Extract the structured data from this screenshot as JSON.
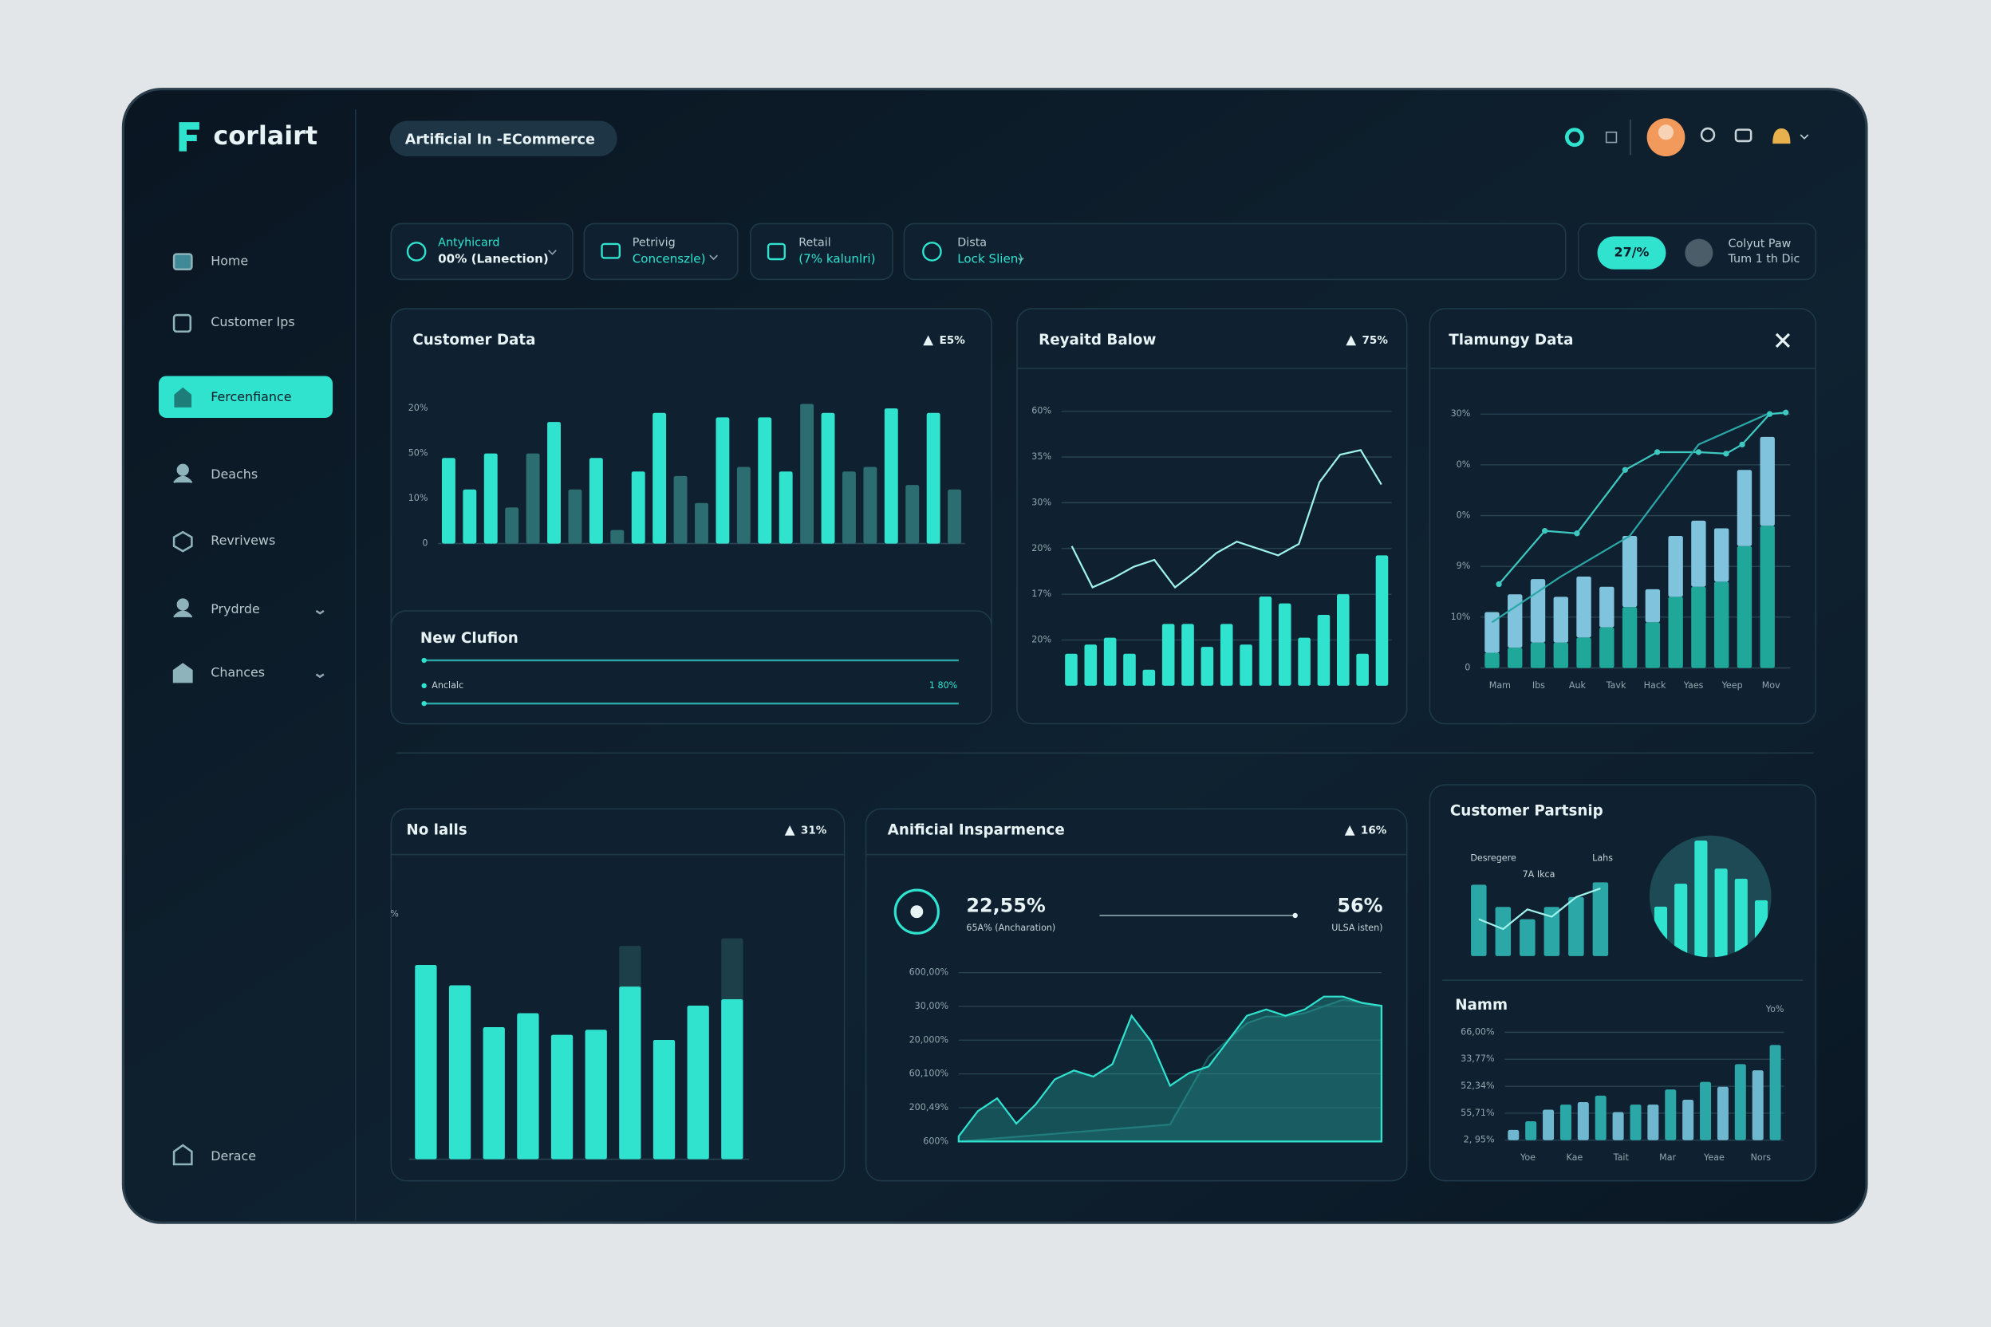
{
  "brand": "corlairt",
  "search": "Artificial In -ECommerce",
  "nav": [
    "Home",
    "Customer Ips",
    "Fercenfiance",
    "Deachs",
    "Revrivews",
    "Prydrde",
    "Chances"
  ],
  "nav_footer": "Derace",
  "filters": [
    {
      "label": "Antyhicard",
      "value": "00% (Lanection)"
    },
    {
      "label": "Petrivig",
      "value": "Concenszle)"
    },
    {
      "label": "Retail",
      "value": "(7% kalunlri)"
    },
    {
      "label": "Dista",
      "value": "Lock Slien)"
    }
  ],
  "status": {
    "badge": "27/%",
    "title": "Colyut Paw",
    "subtitle": "Tum 1 th Dic"
  },
  "progress": {
    "title": "New Clufion",
    "label": "Anclalc",
    "value_label": "1 80%"
  },
  "kpis": [
    {
      "value": "22,55%",
      "label": "65A% (Ancharation)"
    },
    {
      "value": "56%",
      "label": "ULSA isten)"
    }
  ],
  "partnership_title": "Customer Partsnip",
  "mini_labels": [
    "Desregere",
    "Lahs",
    "7A Ikca"
  ],
  "chart_data": [
    {
      "type": "bar",
      "title": "Customer Data",
      "badge": "E5%",
      "ylim": [
        0,
        31
      ],
      "yticks": [
        {
          "value": 30,
          "label": "20%"
        },
        {
          "value": 20,
          "label": "50%"
        },
        {
          "value": 10,
          "label": "10%"
        },
        0
      ],
      "grid": false,
      "series": [
        {
          "type": "bar",
          "values": [
            19,
            12,
            20,
            8,
            20,
            27,
            12,
            19,
            3,
            16,
            29,
            15,
            9,
            28,
            17,
            28,
            16,
            31,
            29,
            16,
            17,
            30,
            13,
            29,
            12
          ],
          "colors": [
            "#2fe3cf",
            "#2fe3cf",
            "#2fe3cf",
            "#2b6d70",
            "#2b6d70",
            "#2fe3cf",
            "#2b6d70",
            "#2fe3cf",
            "#2b6d70",
            "#2fe3cf",
            "#2fe3cf",
            "#2b6d70",
            "#2b6d70",
            "#2fe3cf",
            "#2b6d70",
            "#2fe3cf",
            "#2fe3cf",
            "#2b6d70",
            "#2fe3cf",
            "#2b6d70",
            "#2b6d70",
            "#2fe3cf",
            "#2b6d70",
            "#2fe3cf",
            "#2b6d70"
          ]
        }
      ]
    },
    {
      "type": "combo",
      "title": "Reyaitd Balow",
      "badge": "75%",
      "ylim": [
        0,
        6.3
      ],
      "yticks": [
        {
          "value": 1,
          "label": "20%"
        },
        {
          "value": 2,
          "label": "17%"
        },
        {
          "value": 3,
          "label": "20%"
        },
        {
          "value": 4,
          "label": "30%"
        },
        {
          "value": 5,
          "label": "35%"
        },
        {
          "value": 6,
          "label": "60%"
        }
      ],
      "grid": true,
      "series": [
        {
          "type": "bar",
          "color": "#2fe3cf",
          "values": [
            0.7,
            0.9,
            1.05,
            0.7,
            0.35,
            1.35,
            1.35,
            0.85,
            1.35,
            0.9,
            1.95,
            1.8,
            1.05,
            1.55,
            2,
            0.7,
            2.85
          ]
        },
        {
          "type": "line",
          "color": "#9ff3ea",
          "values": [
            3.05,
            2.15,
            2.35,
            2.6,
            2.75,
            2.15,
            2.5,
            2.9,
            3.15,
            3.0,
            2.85,
            3.1,
            4.45,
            5.05,
            5.15,
            4.4
          ]
        }
      ]
    },
    {
      "type": "combo",
      "title": "Tlamungy Data",
      "ylim": [
        0,
        5.2
      ],
      "yticks": [
        0,
        {
          "value": 1,
          "label": "10%"
        },
        {
          "value": 2,
          "label": "9%"
        },
        {
          "value": 3,
          "label": "0%"
        },
        {
          "value": 4,
          "label": "0%"
        },
        {
          "value": 5,
          "label": "30%"
        }
      ],
      "grid": true,
      "xlim": [
        -0.5,
        13
      ],
      "xlabels": [
        "Mam",
        "Ibs",
        "Auk",
        "Tavk",
        "Hack",
        "Yaes",
        "Yeep",
        "Mov"
      ],
      "series": [
        {
          "type": "bar",
          "color": "#1fa79a",
          "values": [
            0.3,
            0.4,
            0.5,
            0.5,
            0.6,
            0.8,
            1.2,
            0.9,
            1.4,
            1.6,
            1.7,
            2.4,
            2.8
          ]
        },
        {
          "type": "bar",
          "stack": true,
          "color": "#7fc3dd",
          "values": [
            0.8,
            1.05,
            1.25,
            0.9,
            1.2,
            0.8,
            1.4,
            0.65,
            1.2,
            1.3,
            1.05,
            1.5,
            1.75
          ]
        },
        {
          "type": "line",
          "color": "#3ec9c0",
          "dots": true,
          "x": [
            0.3,
            2.3,
            3.7,
            5.8,
            7.2,
            9.0,
            10.2,
            10.9,
            12.1,
            12.8
          ],
          "values": [
            1.65,
            2.7,
            2.65,
            3.9,
            4.25,
            4.25,
            4.22,
            4.4,
            5.0,
            5.03
          ]
        },
        {
          "type": "line",
          "color": "#2aa7a6",
          "x": [
            0,
            3,
            6,
            9,
            12
          ],
          "values": [
            0.9,
            1.8,
            2.6,
            4.4,
            5.0
          ]
        }
      ]
    },
    {
      "type": "bar",
      "title": "No lalls",
      "badge": "31%",
      "ylim": [
        0,
        193
      ],
      "yticks": [
        {
          "value": 193,
          "label": "%"
        }
      ],
      "grid": false,
      "series": [
        {
          "type": "bar",
          "color": "#1d3f4a",
          "values": [
            null,
            null,
            null,
            null,
            null,
            null,
            168,
            null,
            null,
            174
          ]
        },
        {
          "type": "bar",
          "color": "#2fe3cf",
          "values": [
            153,
            137,
            104,
            115,
            98,
            102,
            136,
            94,
            121,
            126
          ]
        }
      ]
    },
    {
      "type": "area",
      "title": "Anificial Insparmence",
      "badge": "16%",
      "ylim": [
        0,
        5
      ],
      "yticks": [
        {
          "value": 0,
          "label": "600%"
        },
        {
          "value": 1,
          "label": "200,49%"
        },
        {
          "value": 2,
          "label": "60,100%"
        },
        {
          "value": 3,
          "label": "20,000%"
        },
        {
          "value": 4,
          "label": "30,00%"
        },
        {
          "value": 5,
          "label": "600,00%"
        }
      ],
      "grid": true,
      "xlim": [
        0,
        22
      ],
      "series": [
        {
          "type": "area",
          "color": "#1b5a5e",
          "x": [
            0,
            11,
            12,
            13,
            14,
            15,
            16,
            17,
            18,
            19,
            20,
            21,
            22
          ],
          "values": [
            0,
            0.5,
            1.5,
            2.5,
            3,
            3.5,
            3.7,
            3.7,
            3.8,
            4,
            4.2,
            4.1,
            4.0
          ]
        },
        {
          "type": "area",
          "color": "#2fe3cf",
          "x": [
            0,
            1,
            2,
            3,
            4,
            5,
            6,
            7,
            8,
            9,
            10,
            11,
            12,
            13,
            14,
            15,
            16,
            17,
            18,
            19,
            20,
            21,
            22
          ],
          "values": [
            0.15,
            0.9,
            1.28,
            0.53,
            1.09,
            1.84,
            2.1,
            1.92,
            2.29,
            3.72,
            2.97,
            1.65,
            2.03,
            2.22,
            2.97,
            3.72,
            3.91,
            3.72,
            3.91,
            4.29,
            4.29,
            4.1,
            4.02
          ]
        }
      ]
    },
    {
      "type": "bar",
      "title": "Namm",
      "corner_label": "Yo%",
      "ylim": [
        0,
        4.4
      ],
      "yticks": [
        {
          "value": 0,
          "label": "2, 95%"
        },
        {
          "value": 1,
          "label": "55,71%"
        },
        {
          "value": 2,
          "label": "52,34%"
        },
        {
          "value": 3,
          "label": "33,77%"
        },
        {
          "value": 4,
          "label": "66,00%"
        }
      ],
      "grid": true,
      "xlabels": [
        "Yoe",
        "Kae",
        "Tait",
        "Mar",
        "Yeae",
        "Nors"
      ],
      "series": [
        {
          "type": "bar",
          "values": [
            0.38,
            0.7,
            1.13,
            1.32,
            1.41,
            1.65,
            1.04,
            1.32,
            1.32,
            1.88,
            1.5,
            2.16,
            1.98,
            2.82,
            2.59,
            3.53
          ],
          "colors": [
            "#6fb6cf",
            "#2aa7a6",
            "#6fb6cf",
            "#2aa7a6",
            "#6fb6cf",
            "#2aa7a6",
            "#6fb6cf",
            "#2aa7a6",
            "#6fb6cf",
            "#2aa7a6",
            "#6fb6cf",
            "#2aa7a6",
            "#6fb6cf",
            "#2aa7a6",
            "#6fb6cf",
            "#2aa7a6"
          ]
        }
      ]
    },
    {
      "type": "combo",
      "ylim": [
        0,
        65
      ],
      "yticks": [],
      "grid": false,
      "series": [
        {
          "type": "bar",
          "color": "#2aa7a6",
          "values": [
            58,
            40,
            30,
            40,
            48,
            60
          ]
        },
        {
          "type": "line",
          "color": "#9ff3ea",
          "values": [
            30,
            22,
            38,
            32,
            48,
            55
          ]
        }
      ]
    },
    {
      "type": "circle_bar",
      "ylim": [
        0,
        96
      ],
      "yticks": [],
      "grid": false,
      "series": [
        {
          "type": "bar",
          "color": "#2fe3cf",
          "values": [
            40,
            58,
            92,
            70,
            62,
            45
          ]
        }
      ]
    }
  ]
}
